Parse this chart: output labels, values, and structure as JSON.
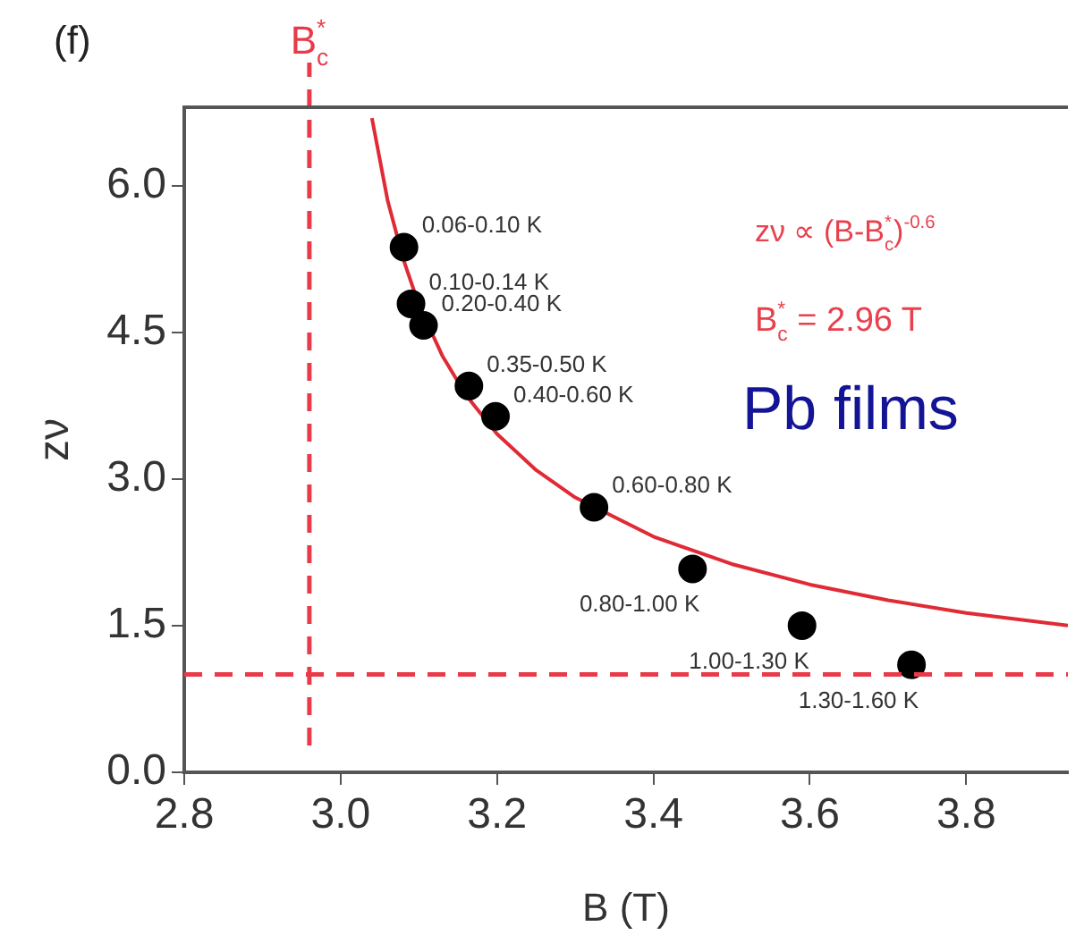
{
  "chart_data": {
    "type": "scatter",
    "xlabel": "B (T)",
    "ylabel": "zν",
    "xlim": [
      2.8,
      3.93
    ],
    "ylim": [
      0,
      6.8
    ],
    "xticks": [
      2.8,
      {
        "value": 3.0,
        "label": "3.0"
      },
      3.2,
      3.4,
      3.6,
      3.8
    ],
    "yticks": [
      {
        "value": 0,
        "label": "0.0"
      },
      1.5,
      {
        "value": 3,
        "label": "3.0"
      },
      4.5,
      {
        "value": 6,
        "label": "6.0"
      }
    ],
    "grid": false,
    "legend": false,
    "marker": "circle",
    "series": [
      {
        "type": "scatter",
        "color": "#000000",
        "x": [
          3.081,
          3.09,
          3.106,
          3.164,
          3.198,
          3.324,
          3.45,
          3.59,
          3.73
        ],
        "values": [
          5.37,
          4.79,
          4.57,
          3.95,
          3.64,
          2.71,
          2.08,
          1.5,
          1.1
        ]
      },
      {
        "type": "line",
        "color": "#e02a35",
        "marker": "none",
        "line_style": "solid",
        "x": [
          3.04,
          3.06,
          3.08,
          3.1,
          3.13,
          3.16,
          3.2,
          3.25,
          3.3,
          3.4,
          3.5,
          3.6,
          3.7,
          3.8,
          3.93
        ],
        "values": [
          6.69,
          5.85,
          5.25,
          4.78,
          4.26,
          3.86,
          3.46,
          3.09,
          2.81,
          2.41,
          2.13,
          1.92,
          1.76,
          1.63,
          1.5
        ]
      }
    ],
    "ref_lines": [
      {
        "axis": "x",
        "value": 2.96,
        "label": "B$_{c}$$^{*}$",
        "color": "#e83a48",
        "line_style": "dashed"
      },
      {
        "axis": "y",
        "value": 1.0,
        "color": "#e83a48",
        "line_style": "dashed"
      }
    ],
    "annotations": [
      "(f)",
      "zν ∝ (B-B$_{c}$$^{*}$)$^{-0.6}$",
      "B$_{c}$$^{*}$ = 2.96 T",
      "Pb films",
      {
        "text": "0.06-0.10 K",
        "x": 3.081,
        "y": 5.37
      },
      {
        "text": "0.10-0.14 K",
        "x": 3.09,
        "y": 4.79
      },
      {
        "text": "0.20-0.40 K",
        "x": 3.106,
        "y": 4.57
      },
      {
        "text": "0.35-0.50 K",
        "x": 3.164,
        "y": 3.95
      },
      {
        "text": "0.40-0.60 K",
        "x": 3.198,
        "y": 3.64
      },
      {
        "text": "0.60-0.80 K",
        "x": 3.324,
        "y": 2.71
      },
      {
        "text": "0.80-1.00 K",
        "x": 3.45,
        "y": 2.08
      },
      {
        "text": "1.00-1.30 K",
        "x": 3.59,
        "y": 1.5
      },
      {
        "text": "1.30-1.60 K",
        "x": 3.73,
        "y": 1.1
      }
    ]
  }
}
